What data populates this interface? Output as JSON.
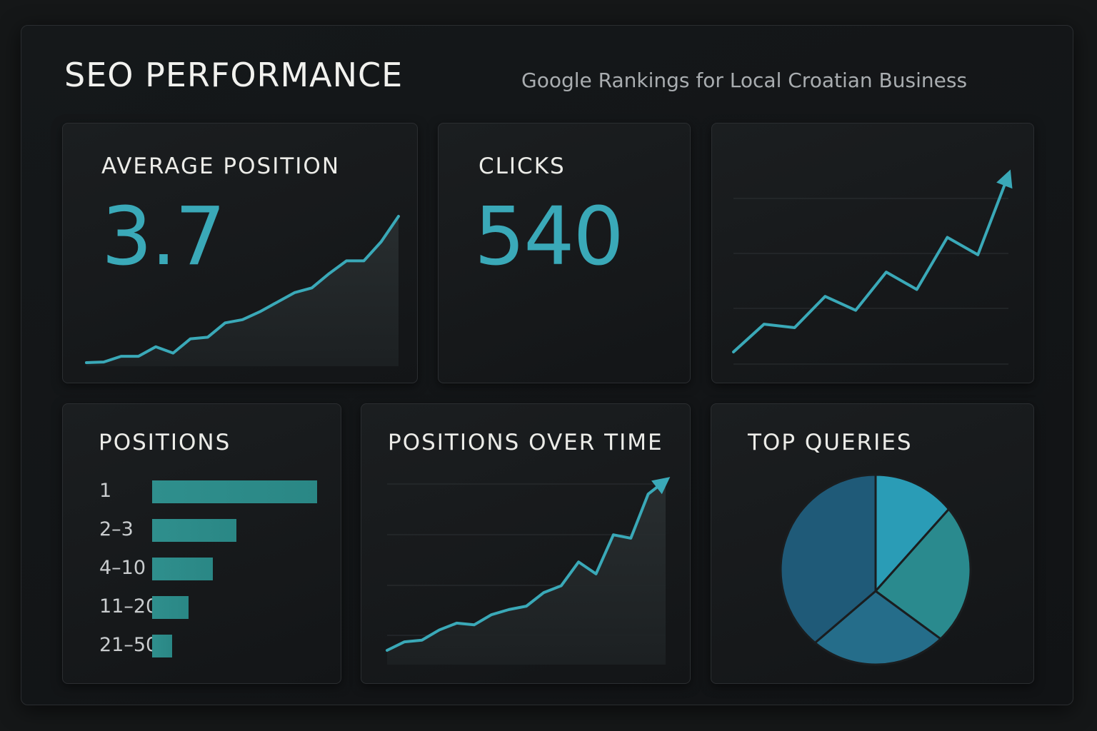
{
  "header": {
    "title": "SEO PERFORMANCE",
    "subtitle": "Google Rankings for Local Croatian Business"
  },
  "colors": {
    "accent": "#3aa9b8",
    "bar": "#2f8f8d",
    "background": "#151718",
    "card": "#1b1e20",
    "pie": [
      "#2a9cb6",
      "#2a8a8e",
      "#256d8a",
      "#1f5a78"
    ]
  },
  "cards": {
    "average_position": {
      "title": "AVERAGE POSITION",
      "value": "3.7"
    },
    "clicks": {
      "title": "CLICKS",
      "value": "540"
    },
    "positions": {
      "title": "POSITIONS"
    },
    "positions_over_time": {
      "title": "POSITIONS OVER TIME"
    },
    "top_queries": {
      "title": "TOP QUERIES"
    }
  },
  "chart_data": [
    {
      "type": "area",
      "x": [
        0,
        1,
        2,
        3,
        4,
        5,
        6,
        7,
        8,
        9,
        10,
        11,
        12,
        13,
        14,
        15,
        16,
        17,
        18
      ],
      "values": [
        2,
        2.2,
        4,
        4,
        7,
        5,
        9.5,
        10,
        14.5,
        15.5,
        18,
        21,
        24,
        25.5,
        30,
        34,
        34,
        40,
        48
      ]
    },
    {
      "type": "line",
      "x": [
        0,
        1,
        2,
        3,
        4,
        5,
        6,
        7,
        8,
        9
      ],
      "values": [
        1,
        9,
        8,
        17,
        13,
        24,
        19,
        34,
        29,
        52
      ],
      "grid": true,
      "arrow": true
    },
    {
      "type": "bar",
      "orientation": "horizontal",
      "categories": [
        "1",
        "2–3",
        "4–10",
        "11–20",
        "21–50"
      ],
      "values": [
        100,
        51,
        37,
        22,
        12
      ]
    },
    {
      "type": "line",
      "x": [
        0,
        1,
        2,
        3,
        4,
        5,
        6,
        7,
        8,
        9,
        10,
        11,
        12,
        13,
        14,
        15,
        16
      ],
      "values": [
        1,
        3.5,
        4,
        7,
        9,
        8.5,
        11.5,
        13,
        14,
        18,
        20,
        27,
        23.5,
        35,
        34,
        47,
        51
      ],
      "grid": true,
      "arrow": true
    },
    {
      "type": "pie",
      "values": [
        14,
        24,
        23,
        39
      ]
    }
  ]
}
